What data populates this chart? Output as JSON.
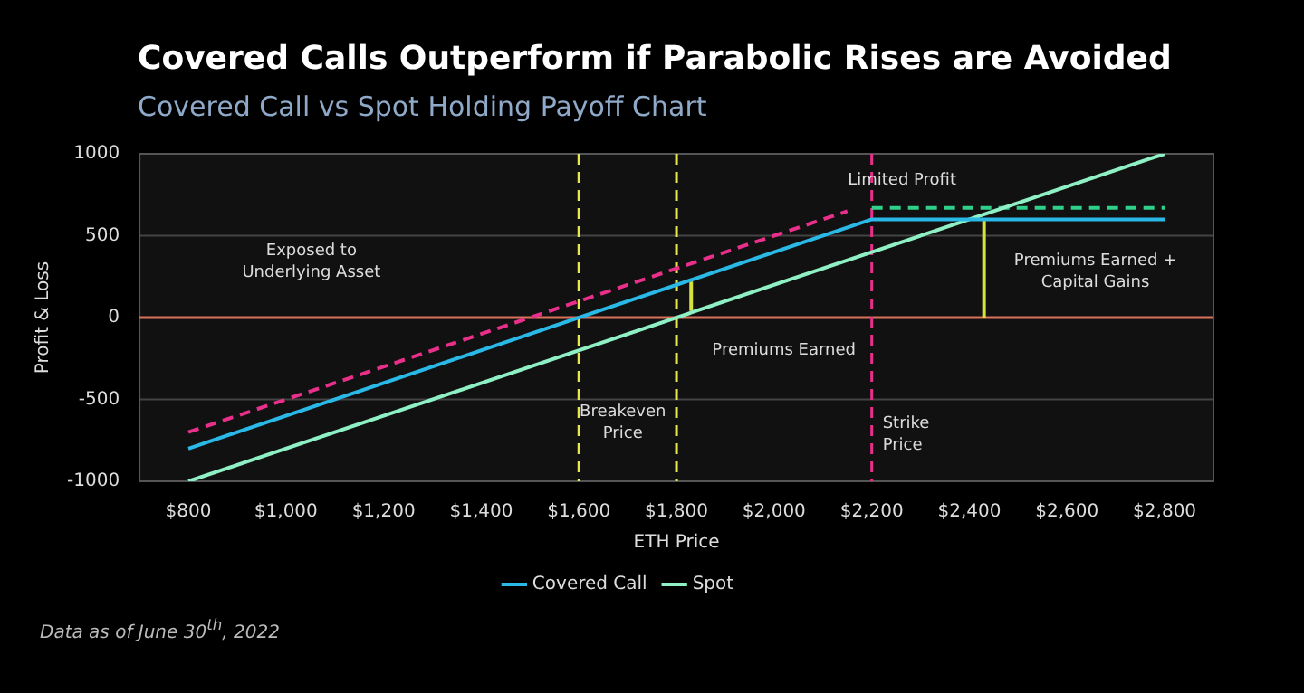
{
  "chart_data": {
    "type": "line",
    "title": "Covered Calls Outperform if Parabolic Rises are Avoided",
    "subtitle": "Covered Call vs Spot Holding Payoff Chart",
    "xlabel": "ETH Price",
    "ylabel": "Profit & Loss",
    "xlim": [
      700,
      2900
    ],
    "xticks": [
      {
        "value": 800,
        "label": "$800"
      },
      {
        "value": 1000,
        "label": "$1,000"
      },
      {
        "value": 1200,
        "label": "$1,200"
      },
      {
        "value": 1400,
        "label": "$1,400"
      },
      {
        "value": 1600,
        "label": "$1,600"
      },
      {
        "value": 1800,
        "label": "$1,800"
      },
      {
        "value": 2000,
        "label": "$2,000"
      },
      {
        "value": 2200,
        "label": "$2,200"
      },
      {
        "value": 2400,
        "label": "$2,400"
      },
      {
        "value": 2600,
        "label": "$2,600"
      },
      {
        "value": 2800,
        "label": "$2,800"
      }
    ],
    "ylim": [
      -1000,
      1000
    ],
    "yticks": [
      -1000,
      -500,
      0,
      500,
      1000
    ],
    "grid": "y",
    "legend": "bottom",
    "marker": "none",
    "series": [
      {
        "name": "Covered Call",
        "color": "#2ab8e6",
        "x": [
          800,
          2200,
          2800
        ],
        "values": [
          -800,
          600,
          600
        ]
      },
      {
        "name": "Spot",
        "color": "#8ef0c4",
        "x": [
          800,
          2800
        ],
        "values": [
          -1000,
          1000
        ]
      },
      {
        "color": "#e8308a",
        "line_style": "dashed",
        "x": [
          800,
          2150
        ],
        "values": [
          -700,
          650
        ]
      },
      {
        "color": "#2fd08a",
        "line_style": "dashed",
        "x": [
          2200,
          2800
        ],
        "values": [
          670,
          670
        ]
      },
      {
        "color": "#d6e23a",
        "x": [
          2430,
          2430
        ],
        "values": [
          0,
          600
        ]
      },
      {
        "color": "#d6e23a",
        "x": [
          1830,
          1830
        ],
        "values": [
          40,
          220
        ]
      }
    ],
    "ref_lines": [
      {
        "axis": "y",
        "value": 0,
        "color": "#d9725a"
      },
      {
        "axis": "x",
        "value": 1600,
        "color": "#e8e84a",
        "line_style": "dashed"
      },
      {
        "axis": "x",
        "value": 1800,
        "color": "#e8e84a",
        "line_style": "dashed"
      },
      {
        "axis": "x",
        "value": 2200,
        "color": "#e8308a",
        "line_style": "dashed",
        "label": "Strike Price"
      }
    ],
    "annotations": [
      "Exposed to Underlying Asset",
      "Premiums Earned",
      "Limited Profit",
      "Premiums Earned + Capital Gains",
      "Breakeven Price",
      "Data as of June 30$^{th}$, 2022"
    ]
  }
}
